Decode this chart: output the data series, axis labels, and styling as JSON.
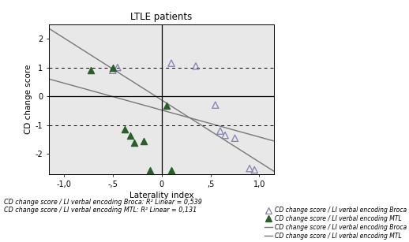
{
  "title": "LTLE patients",
  "xlabel": "Laterality index",
  "ylabel": "CD change score",
  "xlim": [
    -1.15,
    1.15
  ],
  "ylim": [
    -2.7,
    2.5
  ],
  "xticks": [
    -1.0,
    -0.5,
    0.0,
    0.5,
    1.0
  ],
  "xtick_labels": [
    "-1,0",
    "-,5",
    "0",
    ",5",
    "1,0"
  ],
  "yticks": [
    -2.0,
    -1.0,
    0.0,
    1.0,
    2.0
  ],
  "ytick_labels": [
    "-2",
    "-1",
    "0",
    "1",
    "2"
  ],
  "hlines_dashed": [
    1.0,
    -1.0
  ],
  "hlines_solid": [
    0.0
  ],
  "vlines_solid": [
    0.0
  ],
  "broca_open_x": [
    -0.5,
    -0.45,
    0.1,
    0.35,
    0.55,
    0.6,
    0.65,
    0.75,
    0.9,
    0.95
  ],
  "broca_open_y": [
    0.9,
    1.0,
    1.15,
    1.05,
    -0.3,
    -1.2,
    -1.35,
    -1.45,
    -2.5,
    -2.55
  ],
  "mtl_filled_x": [
    -0.72,
    -0.5,
    -0.38,
    -0.32,
    -0.28,
    -0.18,
    -0.12,
    0.05,
    0.1
  ],
  "mtl_filled_y": [
    0.9,
    1.0,
    -1.15,
    -1.35,
    -1.6,
    -1.55,
    -2.55,
    -0.32,
    -2.55
  ],
  "broca_line_x": [
    -1.15,
    1.15
  ],
  "broca_line_y": [
    2.35,
    -2.6
  ],
  "mtl_line_x": [
    -1.15,
    1.15
  ],
  "mtl_line_y": [
    0.6,
    -1.55
  ],
  "bg_color": "#e8e8e8",
  "open_marker_color": "#8080b0",
  "filled_marker_color": "#2a5e2a",
  "line_color": "#777777",
  "r2_text": "CD change score / LI verbal encoding Broca: R² Linear = 0,539\nCD change score / LI verbal encoding MTL: R² Linear = 0,131"
}
